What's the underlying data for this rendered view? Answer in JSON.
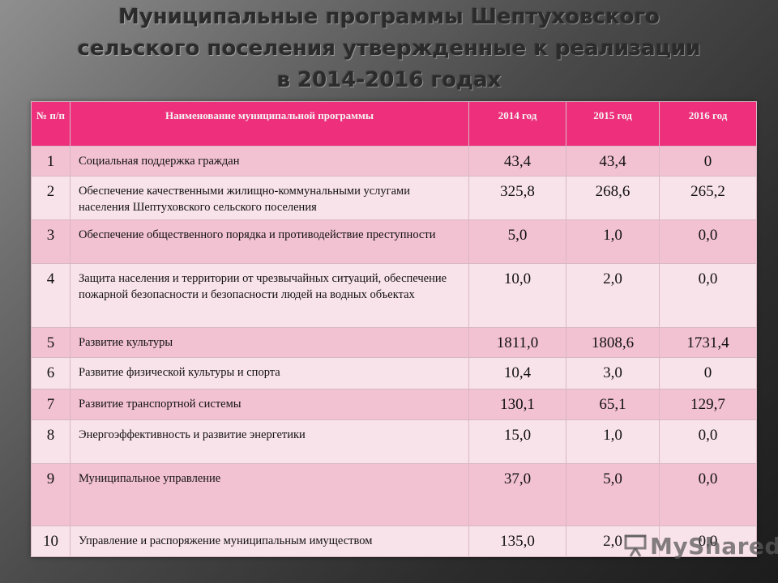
{
  "title": {
    "line1": "Муниципальные программы Шептуховского",
    "line2": "сельского поселения утвержденные к реализации",
    "line3": "в 2014-2016 годах"
  },
  "table": {
    "headers": {
      "num": "№ п/п",
      "name": "Наименование муниципальной программы",
      "y2014": "2014 год",
      "y2015": "2015 год",
      "y2016": "2016 год"
    },
    "rows": [
      {
        "num": "1",
        "name": "Социальная поддержка граждан",
        "y2014": "43,4",
        "y2015": "43,4",
        "y2016": "0"
      },
      {
        "num": "2",
        "name": "Обеспечение качественными жилищно-коммунальными услугами населения Шептуховского сельского поселения",
        "y2014": "325,8",
        "y2015": "268,6",
        "y2016": "265,2"
      },
      {
        "num": "3",
        "name": "Обеспечение общественного порядка и противодействие преступности",
        "y2014": "5,0",
        "y2015": "1,0",
        "y2016": "0,0"
      },
      {
        "num": "4",
        "name": "Защита населения и территории от чрезвычайных ситуаций, обеспечение пожарной безопасности и безопасности людей на водных объектах",
        "y2014": "10,0",
        "y2015": "2,0",
        "y2016": "0,0"
      },
      {
        "num": "5",
        "name": "Развитие культуры",
        "y2014": "1811,0",
        "y2015": "1808,6",
        "y2016": "1731,4"
      },
      {
        "num": "6",
        "name": "Развитие физической культуры и спорта",
        "y2014": "10,4",
        "y2015": "3,0",
        "y2016": "0"
      },
      {
        "num": "7",
        "name": "Развитие транспортной системы",
        "y2014": "130,1",
        "y2015": "65,1",
        "y2016": "129,7"
      },
      {
        "num": "8",
        "name": "Энергоэффективность и развитие энергетики",
        "y2014": "15,0",
        "y2015": "1,0",
        "y2016": "0,0"
      },
      {
        "num": "9",
        "name": "Муниципальное управление",
        "y2014": "37,0",
        "y2015": "5,0",
        "y2016": "0,0"
      },
      {
        "num": "10",
        "name": "Управление и распоряжение муниципальным имуществом",
        "y2014": "135,0",
        "y2015": "2,0",
        "y2016": "0,0"
      }
    ]
  },
  "watermark": {
    "text": "MyShared",
    "icon": "projector-screen-icon"
  },
  "colors": {
    "header_bg": "#ee2f7b",
    "row_odd": "#f3c2d2",
    "row_even": "#f9e3ea"
  }
}
